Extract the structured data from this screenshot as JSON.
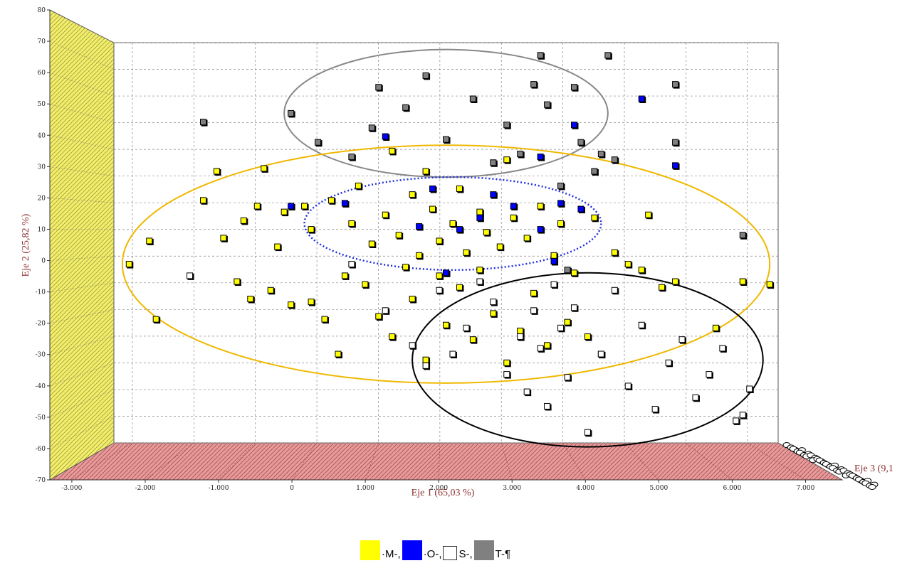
{
  "chart_data": {
    "type": "scatter",
    "projection": "3d",
    "title": "",
    "xlabel": "Eje 1 (65,03 %)",
    "ylabel": "Eje 2 (25,82 %)",
    "zlabel": "Eje 3 (9,1",
    "xlim": [
      -3300,
      7500
    ],
    "ylim": [
      -70,
      80
    ],
    "x_ticks": [
      "-3.000",
      "-2.000",
      "-1.000",
      "0",
      "1.000",
      "2.000",
      "3.000",
      "4.000",
      "5.000",
      "6.000",
      "7.000"
    ],
    "y_ticks": [
      "80",
      "70",
      "60",
      "50",
      "40",
      "30",
      "20",
      "10",
      "0",
      "-10",
      "-20",
      "-30",
      "-40",
      "-50",
      "-60",
      "-70"
    ],
    "grid": true,
    "legend_position": "bottom",
    "series": [
      {
        "name": "M",
        "legend_text": "·M-,",
        "color": "#ffff00",
        "points": [
          [
            -2600,
            -2
          ],
          [
            -2300,
            6
          ],
          [
            -2200,
            -21
          ],
          [
            -1500,
            20
          ],
          [
            -1300,
            30
          ],
          [
            -1200,
            7
          ],
          [
            -1000,
            -8
          ],
          [
            -900,
            13
          ],
          [
            -800,
            -14
          ],
          [
            -700,
            18
          ],
          [
            -600,
            31
          ],
          [
            -500,
            -11
          ],
          [
            -400,
            4
          ],
          [
            -300,
            16
          ],
          [
            -200,
            -16
          ],
          [
            0,
            18
          ],
          [
            100,
            10
          ],
          [
            100,
            -15
          ],
          [
            300,
            -21
          ],
          [
            400,
            20
          ],
          [
            500,
            -33
          ],
          [
            600,
            -6
          ],
          [
            700,
            12
          ],
          [
            800,
            25
          ],
          [
            900,
            -9
          ],
          [
            1000,
            5
          ],
          [
            1100,
            -20
          ],
          [
            1200,
            15
          ],
          [
            1300,
            37
          ],
          [
            1300,
            -27
          ],
          [
            1400,
            8
          ],
          [
            1500,
            -3
          ],
          [
            1600,
            22
          ],
          [
            1600,
            -14
          ],
          [
            1700,
            1
          ],
          [
            1800,
            30
          ],
          [
            1800,
            -35
          ],
          [
            1900,
            17
          ],
          [
            2000,
            -6
          ],
          [
            2000,
            6
          ],
          [
            2100,
            -23
          ],
          [
            2200,
            12
          ],
          [
            2300,
            24
          ],
          [
            2300,
            -10
          ],
          [
            2400,
            2
          ],
          [
            2500,
            -28
          ],
          [
            2600,
            16
          ],
          [
            2600,
            -4
          ],
          [
            2700,
            9
          ],
          [
            2800,
            -19
          ],
          [
            2900,
            4
          ],
          [
            3000,
            34
          ],
          [
            3000,
            -36
          ],
          [
            3100,
            14
          ],
          [
            3200,
            -25
          ],
          [
            3300,
            7
          ],
          [
            3400,
            -12
          ],
          [
            3500,
            18
          ],
          [
            3600,
            -30
          ],
          [
            3700,
            1
          ],
          [
            3800,
            12
          ],
          [
            3900,
            -22
          ],
          [
            4000,
            -5
          ],
          [
            4200,
            -27
          ],
          [
            4300,
            14
          ],
          [
            4400,
            -33
          ],
          [
            4600,
            2
          ],
          [
            4800,
            -2
          ],
          [
            5000,
            -4
          ],
          [
            5100,
            15
          ],
          [
            5300,
            -10
          ],
          [
            5500,
            -8
          ],
          [
            6100,
            -24
          ],
          [
            6500,
            -8
          ],
          [
            6900,
            -9
          ]
        ]
      },
      {
        "name": "O",
        "legend_text": "·O-,",
        "color": "#0000ff",
        "points": [
          [
            -200,
            18
          ],
          [
            600,
            19
          ],
          [
            1200,
            42
          ],
          [
            1700,
            11
          ],
          [
            1900,
            24
          ],
          [
            2100,
            -5
          ],
          [
            2300,
            10
          ],
          [
            2600,
            14
          ],
          [
            2800,
            22
          ],
          [
            3100,
            18
          ],
          [
            3500,
            35
          ],
          [
            3500,
            10
          ],
          [
            3700,
            -1
          ],
          [
            3800,
            19
          ],
          [
            4000,
            46
          ],
          [
            4100,
            17
          ],
          [
            5000,
            55
          ],
          [
            5500,
            32
          ]
        ]
      },
      {
        "name": "S",
        "legend_text": "S-,",
        "color": "#ffffff",
        "points": [
          [
            -1700,
            -6
          ],
          [
            700,
            -2
          ],
          [
            1200,
            -18
          ],
          [
            1600,
            -30
          ],
          [
            1800,
            -37
          ],
          [
            2000,
            -11
          ],
          [
            2200,
            -33
          ],
          [
            2400,
            -24
          ],
          [
            2600,
            -8
          ],
          [
            2800,
            -15
          ],
          [
            3000,
            -40
          ],
          [
            3200,
            -27
          ],
          [
            3300,
            -46
          ],
          [
            3400,
            -18
          ],
          [
            3500,
            -31
          ],
          [
            3600,
            -51
          ],
          [
            3700,
            -9
          ],
          [
            3800,
            -24
          ],
          [
            3900,
            -41
          ],
          [
            4000,
            -17
          ],
          [
            4200,
            -60
          ],
          [
            4400,
            -33
          ],
          [
            4600,
            -11
          ],
          [
            4800,
            -44
          ],
          [
            5000,
            -23
          ],
          [
            5200,
            -52
          ],
          [
            5400,
            -36
          ],
          [
            5600,
            -28
          ],
          [
            5800,
            -48
          ],
          [
            6000,
            -40
          ],
          [
            6200,
            -31
          ],
          [
            6400,
            -56
          ],
          [
            6500,
            -54
          ],
          [
            6600,
            -45
          ]
        ]
      },
      {
        "name": "T",
        "legend_text": "T-¶",
        "color": "#808080",
        "points": [
          [
            -1500,
            47
          ],
          [
            -200,
            50
          ],
          [
            200,
            40
          ],
          [
            700,
            35
          ],
          [
            1000,
            45
          ],
          [
            1100,
            59
          ],
          [
            1500,
            52
          ],
          [
            1800,
            63
          ],
          [
            2100,
            41
          ],
          [
            2500,
            55
          ],
          [
            2800,
            33
          ],
          [
            3000,
            46
          ],
          [
            3200,
            36
          ],
          [
            3400,
            60
          ],
          [
            3500,
            70
          ],
          [
            3600,
            53
          ],
          [
            3800,
            25
          ],
          [
            4000,
            59
          ],
          [
            4100,
            40
          ],
          [
            4300,
            30
          ],
          [
            4400,
            36
          ],
          [
            4500,
            70
          ],
          [
            4600,
            34
          ],
          [
            5500,
            60
          ],
          [
            5500,
            40
          ],
          [
            6500,
            8
          ],
          [
            3900,
            -4
          ]
        ]
      }
    ],
    "annotations": [
      {
        "shape": "ellipse",
        "color": "#888888",
        "style": "solid",
        "center": [
          2100,
          50
        ],
        "radii": [
          2400,
          22
        ]
      },
      {
        "shape": "ellipse",
        "color": "#f0b800",
        "style": "solid",
        "center": [
          2100,
          -2
        ],
        "radii": [
          4800,
          41
        ]
      },
      {
        "shape": "ellipse",
        "color": "#2030e0",
        "style": "dotted",
        "center": [
          2200,
          12
        ],
        "radii": [
          2200,
          16
        ]
      },
      {
        "shape": "ellipse",
        "color": "#000000",
        "style": "solid",
        "center": [
          4200,
          -35
        ],
        "radii": [
          2600,
          30
        ]
      }
    ]
  }
}
